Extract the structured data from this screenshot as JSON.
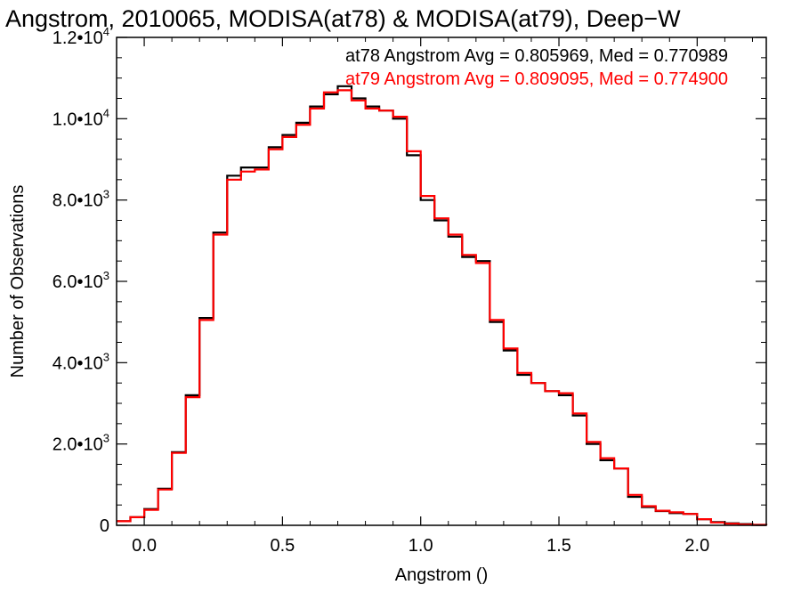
{
  "chart_data": {
    "type": "line",
    "step": true,
    "title": "Angstrom, 2010065, MODISA(at78) & MODISA(at79), Deep−W",
    "xlabel": "Angstrom ()",
    "ylabel": "Number of Observations",
    "xlim": [
      -0.1,
      2.25
    ],
    "ylim": [
      0,
      12000
    ],
    "grid": false,
    "legend_position": "top-right",
    "x_ticks": [
      {
        "value": 0.0,
        "label": "0.0"
      },
      {
        "value": 0.5,
        "label": "0.5"
      },
      {
        "value": 1.0,
        "label": "1.0"
      },
      {
        "value": 1.5,
        "label": "1.5"
      },
      {
        "value": 2.0,
        "label": "2.0"
      }
    ],
    "y_ticks": [
      {
        "value": 0,
        "mantissa": "0",
        "exponent": ""
      },
      {
        "value": 2000,
        "mantissa": "2.0•10",
        "exponent": "3"
      },
      {
        "value": 4000,
        "mantissa": "4.0•10",
        "exponent": "3"
      },
      {
        "value": 6000,
        "mantissa": "6.0•10",
        "exponent": "3"
      },
      {
        "value": 8000,
        "mantissa": "8.0•10",
        "exponent": "3"
      },
      {
        "value": 10000,
        "mantissa": "1.0•10",
        "exponent": "4"
      },
      {
        "value": 12000,
        "mantissa": "1.2•10",
        "exponent": "4"
      }
    ],
    "series": [
      {
        "name": "at78",
        "color": "#000000",
        "legend_text": "at78 Angstrom Avg = 0.805969, Med = 0.770989",
        "x": [
          -0.1,
          -0.05,
          0.0,
          0.05,
          0.1,
          0.15,
          0.2,
          0.25,
          0.3,
          0.35,
          0.4,
          0.45,
          0.5,
          0.55,
          0.6,
          0.65,
          0.7,
          0.75,
          0.8,
          0.85,
          0.9,
          0.95,
          1.0,
          1.05,
          1.1,
          1.15,
          1.2,
          1.25,
          1.3,
          1.35,
          1.4,
          1.45,
          1.5,
          1.55,
          1.6,
          1.65,
          1.7,
          1.75,
          1.8,
          1.85,
          1.9,
          1.95,
          2.0,
          2.05,
          2.1,
          2.15,
          2.2,
          2.25
        ],
        "y": [
          100,
          200,
          400,
          900,
          1800,
          3200,
          5100,
          7200,
          8600,
          8800,
          8800,
          9300,
          9600,
          9900,
          10300,
          10600,
          10800,
          10500,
          10300,
          10200,
          10000,
          9100,
          8000,
          7500,
          7100,
          6600,
          6500,
          5000,
          4300,
          3700,
          3500,
          3300,
          3200,
          2700,
          2000,
          1600,
          1400,
          700,
          450,
          350,
          300,
          280,
          150,
          80,
          50,
          30,
          10,
          0
        ]
      },
      {
        "name": "at79",
        "color": "#ff0000",
        "legend_text": "at79 Angstrom Avg = 0.809095, Med = 0.774900",
        "x": [
          -0.1,
          -0.05,
          0.0,
          0.05,
          0.1,
          0.15,
          0.2,
          0.25,
          0.3,
          0.35,
          0.4,
          0.45,
          0.5,
          0.55,
          0.6,
          0.65,
          0.7,
          0.75,
          0.8,
          0.85,
          0.9,
          0.95,
          1.0,
          1.05,
          1.1,
          1.15,
          1.2,
          1.25,
          1.3,
          1.35,
          1.4,
          1.45,
          1.5,
          1.55,
          1.6,
          1.65,
          1.7,
          1.75,
          1.8,
          1.85,
          1.9,
          1.95,
          2.0,
          2.05,
          2.1,
          2.15,
          2.2,
          2.25
        ],
        "y": [
          100,
          200,
          380,
          880,
          1780,
          3150,
          5050,
          7150,
          8500,
          8700,
          8750,
          9250,
          9550,
          9850,
          10250,
          10650,
          10700,
          10450,
          10250,
          10200,
          10050,
          9200,
          8100,
          7550,
          7150,
          6650,
          6450,
          5050,
          4350,
          3750,
          3500,
          3300,
          3250,
          2750,
          2050,
          1650,
          1400,
          750,
          470,
          360,
          320,
          280,
          150,
          70,
          40,
          20,
          10,
          0
        ]
      }
    ]
  }
}
